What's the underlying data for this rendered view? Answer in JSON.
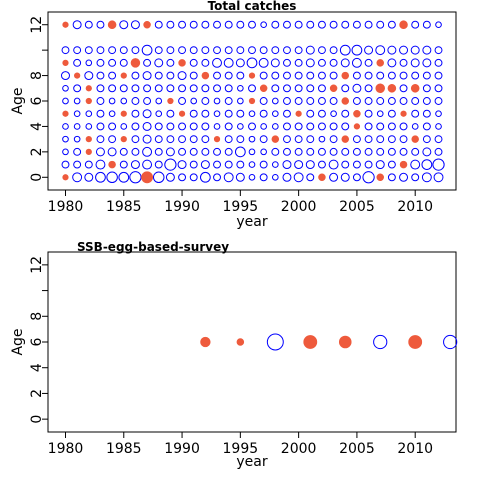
{
  "chart_data": [
    {
      "type": "scatter",
      "title": "Total catches",
      "xlabel": "year",
      "ylabel": "Age",
      "xlim": [
        1978.5,
        2013.5
      ],
      "ylim": [
        -1,
        13
      ],
      "x_ticks": [
        "1980",
        "1985",
        "1990",
        "1995",
        "2000",
        "2005",
        "2010"
      ],
      "y_ticks": [
        "0",
        "2",
        "4",
        "6",
        "8",
        "12"
      ],
      "y_minor_ticks": [
        10
      ],
      "grid": false,
      "positive_color": "#0000ff",
      "negative_color": "#ee5a3c",
      "x": [
        1980,
        1981,
        1982,
        1983,
        1984,
        1985,
        1986,
        1987,
        1988,
        1989,
        1990,
        1991,
        1992,
        1993,
        1994,
        1995,
        1996,
        1997,
        1998,
        1999,
        2000,
        2001,
        2002,
        2003,
        2004,
        2005,
        2006,
        2007,
        2008,
        2009,
        2010,
        2011,
        2012
      ],
      "ages": [
        0,
        1,
        2,
        3,
        4,
        5,
        6,
        7,
        8,
        9,
        10,
        12
      ],
      "series": [
        {
          "age": 0,
          "values": [
            -0.2,
            0.5,
            0.4,
            0.6,
            0.7,
            0.6,
            0.8,
            -0.8,
            0.7,
            0.4,
            0.3,
            0.3,
            0.6,
            0.3,
            0.5,
            0.4,
            0.2,
            0.3,
            0.2,
            0.4,
            0.5,
            0.3,
            -0.3,
            0.4,
            0.4,
            0.3,
            0.8,
            -0.3,
            0.3,
            0.4,
            0.3,
            0.5,
            0.5
          ]
        },
        {
          "age": 1,
          "values": [
            0.3,
            0.3,
            0.3,
            0.5,
            -0.3,
            0.3,
            0.4,
            0.5,
            0.3,
            0.8,
            0.4,
            0.3,
            0.4,
            0.3,
            0.3,
            0.3,
            0.2,
            0.3,
            0.2,
            0.4,
            0.4,
            0.4,
            0.3,
            0.5,
            0.3,
            0.3,
            0.3,
            0.4,
            0.3,
            -0.3,
            0.5,
            0.6,
            0.8
          ]
        },
        {
          "age": 2,
          "values": [
            0.2,
            0.3,
            -0.2,
            0.4,
            0.4,
            0.3,
            0.3,
            0.5,
            0.3,
            0.4,
            0.3,
            0.3,
            0.3,
            0.3,
            0.3,
            0.6,
            0.2,
            0.2,
            0.3,
            0.3,
            0.3,
            0.3,
            0.3,
            0.3,
            0.3,
            0.3,
            0.3,
            0.3,
            0.3,
            0.3,
            0.3,
            0.4,
            0.3
          ]
        },
        {
          "age": 3,
          "values": [
            0.2,
            0.2,
            -0.2,
            0.3,
            0.3,
            -0.2,
            0.3,
            0.4,
            0.3,
            0.3,
            0.3,
            0.3,
            0.3,
            -0.2,
            0.3,
            0.3,
            0.2,
            0.3,
            -0.3,
            0.3,
            0.3,
            0.3,
            0.2,
            0.3,
            -0.3,
            0.3,
            0.3,
            0.3,
            0.3,
            0.3,
            -0.3,
            0.3,
            0.3
          ]
        },
        {
          "age": 4,
          "values": [
            0.2,
            0.2,
            0.2,
            0.3,
            0.3,
            0.2,
            0.3,
            0.4,
            0.3,
            0.3,
            0.3,
            0.3,
            0.3,
            0.2,
            0.3,
            0.2,
            0.3,
            0.2,
            0.2,
            0.3,
            0.3,
            0.3,
            0.3,
            0.3,
            0.3,
            -0.2,
            0.3,
            0.3,
            0.3,
            0.3,
            0.2,
            0.3,
            0.2
          ]
        },
        {
          "age": 5,
          "values": [
            -0.2,
            0.2,
            0.2,
            0.3,
            0.2,
            -0.2,
            0.3,
            0.4,
            0.2,
            0.3,
            -0.2,
            0.3,
            0.3,
            0.2,
            0.3,
            0.3,
            0.2,
            0.3,
            0.2,
            0.3,
            -0.2,
            0.3,
            0.3,
            0.2,
            0.3,
            -0.3,
            0.3,
            0.2,
            0.3,
            -0.2,
            0.3,
            0.3,
            0.2
          ]
        },
        {
          "age": 6,
          "values": [
            0.2,
            0.2,
            -0.2,
            0.3,
            0.2,
            0.2,
            0.3,
            0.3,
            0.2,
            -0.2,
            0.3,
            0.2,
            0.3,
            0.2,
            0.3,
            0.2,
            -0.2,
            0.3,
            0.2,
            0.3,
            0.3,
            0.3,
            0.3,
            0.3,
            -0.3,
            0.3,
            0.3,
            0.3,
            0.3,
            0.3,
            0.3,
            0.3,
            0.3
          ]
        },
        {
          "age": 7,
          "values": [
            0.2,
            0.3,
            -0.2,
            0.3,
            0.3,
            0.3,
            0.3,
            0.3,
            0.3,
            0.3,
            0.3,
            0.3,
            0.3,
            0.3,
            0.3,
            0.2,
            0.3,
            -0.3,
            0.3,
            0.3,
            0.3,
            0.3,
            0.3,
            -0.3,
            0.3,
            0.4,
            0.3,
            -0.5,
            -0.4,
            0.3,
            -0.4,
            0.3,
            0.3
          ]
        },
        {
          "age": 8,
          "values": [
            0.4,
            -0.2,
            0.4,
            0.3,
            0.3,
            -0.2,
            0.3,
            0.4,
            0.3,
            0.3,
            0.4,
            0.3,
            -0.3,
            0.3,
            0.3,
            0.3,
            -0.2,
            0.3,
            0.3,
            0.3,
            0.3,
            0.3,
            0.3,
            0.3,
            -0.3,
            0.3,
            0.3,
            0.3,
            0.3,
            0.3,
            0.3,
            0.3,
            0.3
          ]
        },
        {
          "age": 9,
          "values": [
            -0.2,
            0.3,
            0.2,
            0.3,
            0.3,
            0.3,
            -0.5,
            0.3,
            0.4,
            0.3,
            -0.3,
            0.3,
            0.3,
            0.5,
            0.5,
            0.4,
            0.6,
            0.5,
            0.4,
            0.3,
            0.3,
            0.4,
            0.3,
            0.3,
            0.4,
            0.5,
            0.3,
            -0.3,
            0.4,
            0.3,
            0.4,
            0.4,
            0.3
          ]
        },
        {
          "age": 10,
          "values": [
            0.3,
            0.3,
            0.3,
            0.3,
            0.3,
            0.3,
            0.3,
            0.6,
            0.3,
            0.3,
            0.3,
            0.3,
            0.3,
            0.3,
            0.3,
            0.3,
            0.3,
            0.3,
            0.3,
            0.3,
            0.3,
            0.4,
            0.3,
            0.3,
            0.6,
            0.6,
            0.4,
            0.5,
            0.4,
            0.4,
            0.4,
            0.4,
            0.3
          ]
        },
        {
          "age": 12,
          "values": [
            -0.2,
            0.4,
            0.3,
            0.3,
            -0.4,
            0.4,
            0.4,
            -0.3,
            0.3,
            0.3,
            0.3,
            0.3,
            0.3,
            0.3,
            0.3,
            0.3,
            0.3,
            0.2,
            0.3,
            0.3,
            0.3,
            0.3,
            0.3,
            0.3,
            0.3,
            0.3,
            0.3,
            0.3,
            0.3,
            -0.4,
            0.3,
            0.3,
            0.2
          ]
        }
      ]
    },
    {
      "type": "scatter",
      "title": "SSB-egg-based-survey",
      "xlabel": "year",
      "ylabel": "Age",
      "xlim": [
        1978.5,
        2013.5
      ],
      "ylim": [
        -1,
        13
      ],
      "x_ticks": [
        "1980",
        "1985",
        "1990",
        "1995",
        "2000",
        "2005",
        "2010"
      ],
      "y_ticks": [
        "0",
        "2",
        "4",
        "6",
        "8",
        "12"
      ],
      "y_minor_ticks": [
        10
      ],
      "grid": false,
      "positive_color": "#0000ff",
      "negative_color": "#ee5a3c",
      "points": [
        {
          "year": 1992,
          "age": 6,
          "value": -0.6
        },
        {
          "year": 1995,
          "age": 6,
          "value": -0.3
        },
        {
          "year": 1998,
          "age": 6,
          "value": 1.6
        },
        {
          "year": 2001,
          "age": 6,
          "value": -1.1
        },
        {
          "year": 2004,
          "age": 6,
          "value": -0.9
        },
        {
          "year": 2007,
          "age": 6,
          "value": 1.1
        },
        {
          "year": 2010,
          "age": 6,
          "value": -1.1
        },
        {
          "year": 2013,
          "age": 6,
          "value": 1.1
        }
      ]
    }
  ]
}
